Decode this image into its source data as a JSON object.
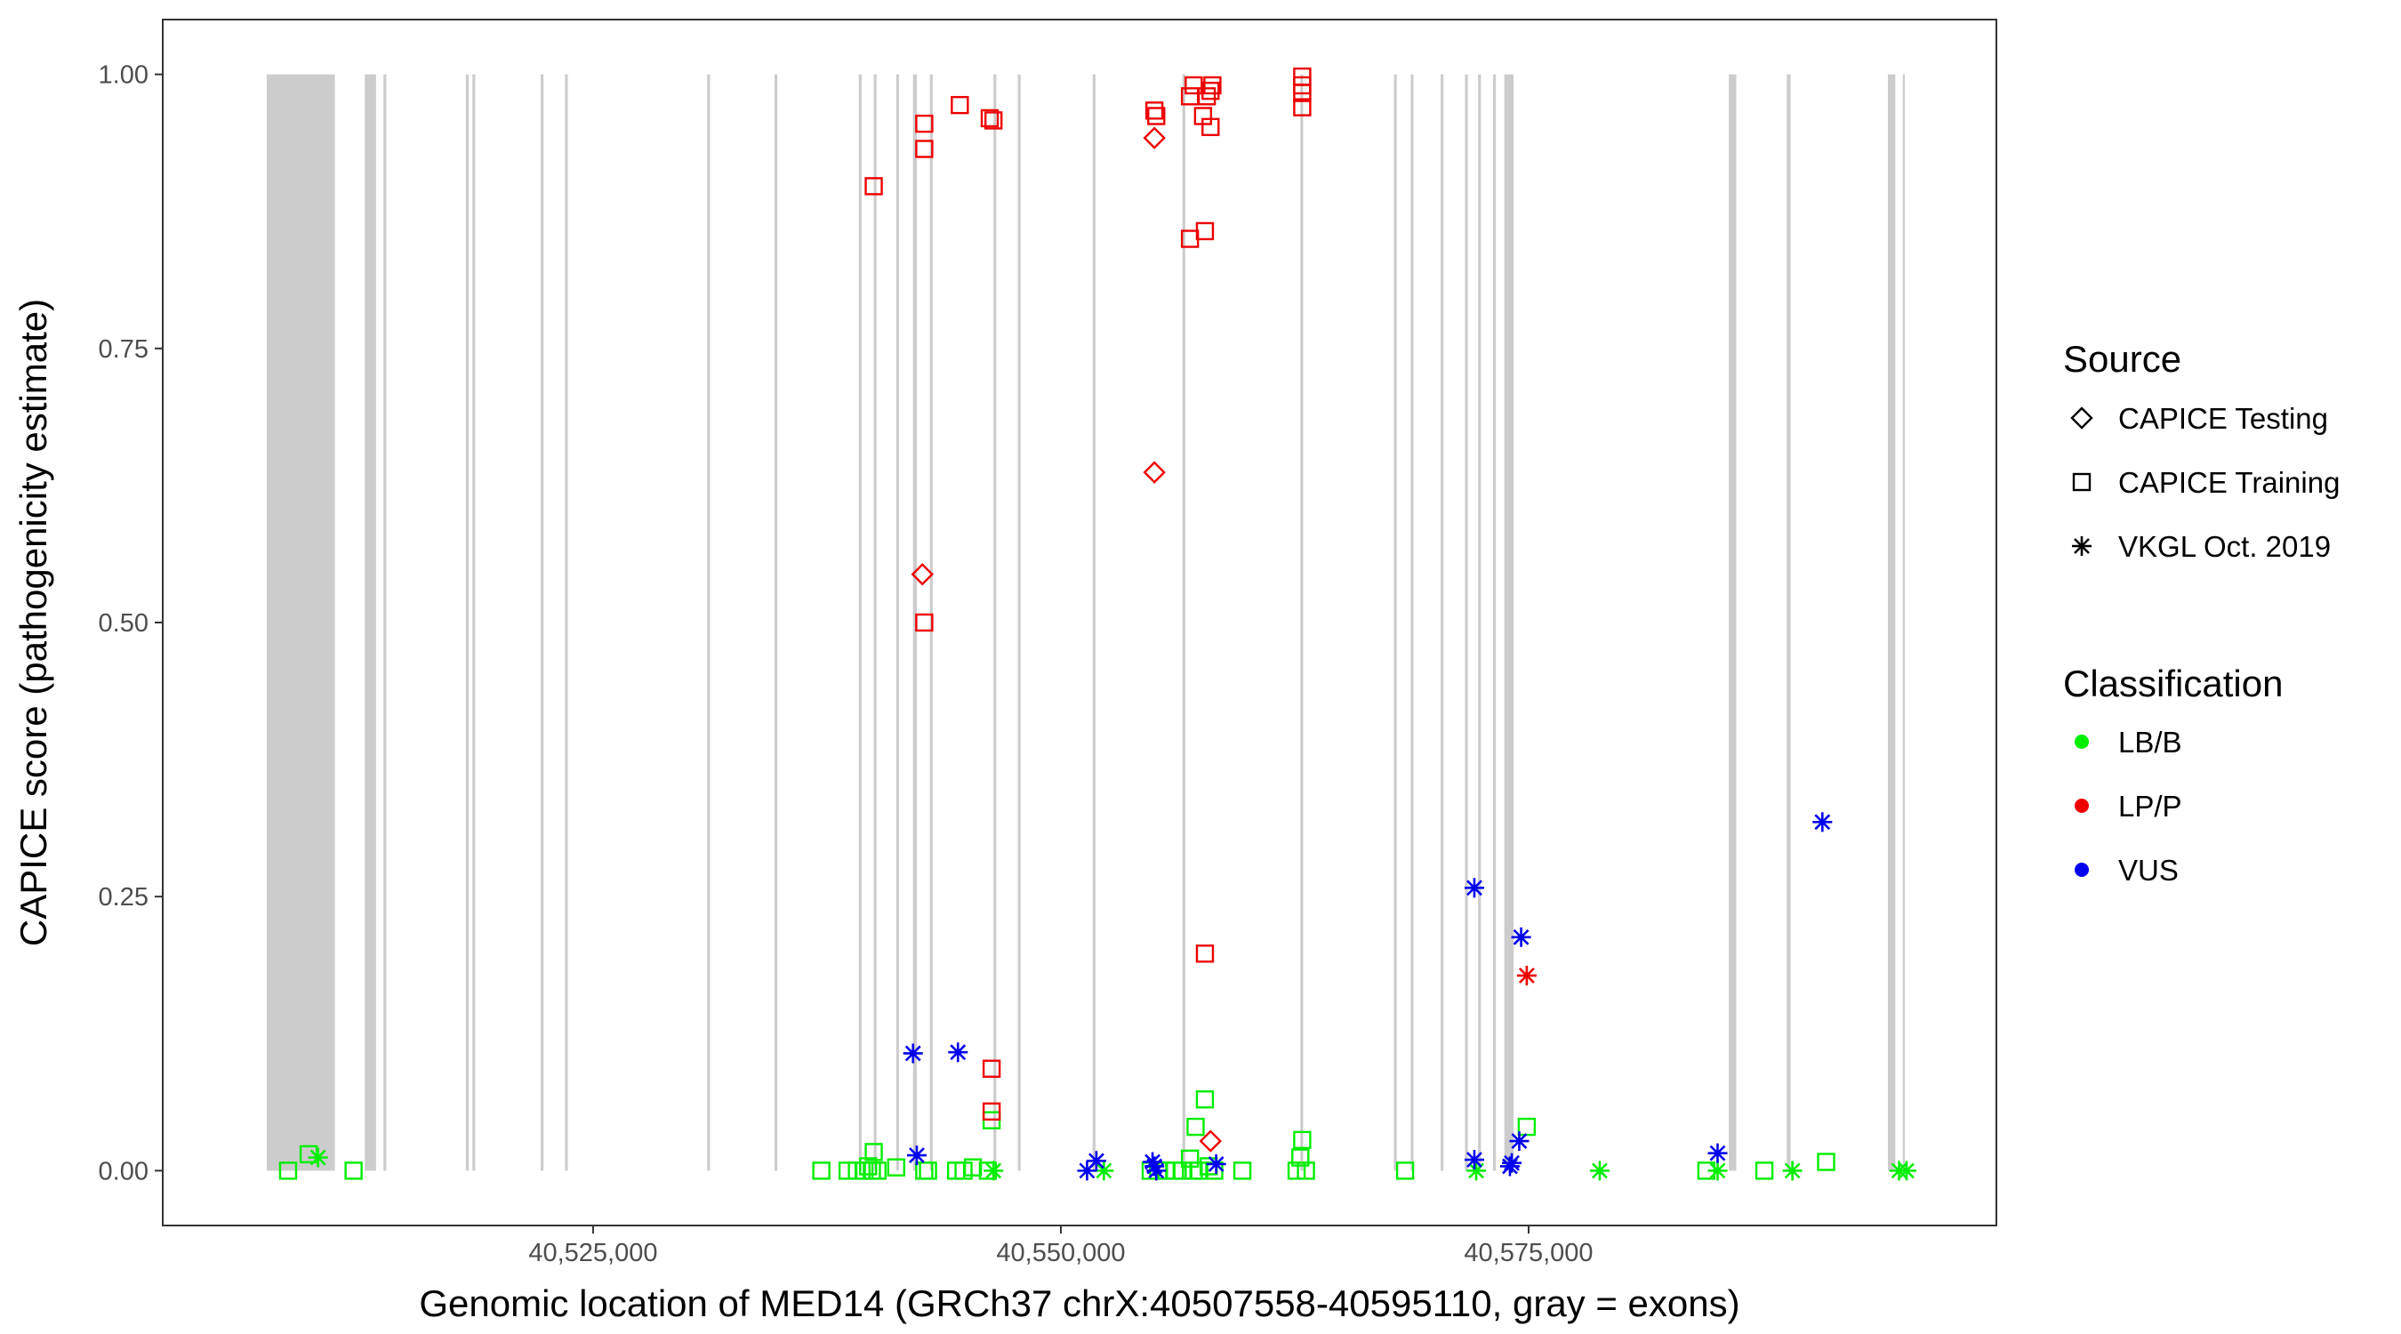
{
  "chart_data": {
    "type": "scatter",
    "title": "",
    "xlabel": "Genomic location of MED14 (GRCh37 chrX:40507558-40595110, gray = exons)",
    "ylabel": "CAPICE score (pathogenicity estimate)",
    "xlim": [
      40502000,
      40600000
    ],
    "ylim": [
      -0.05,
      1.05
    ],
    "x_ticks": [
      40525000,
      40550000,
      40575000
    ],
    "x_tick_labels": [
      "40,525,000",
      "40,550,000",
      "40,575,000"
    ],
    "y_ticks": [
      0,
      0.25,
      0.5,
      0.75,
      1
    ],
    "y_tick_labels": [
      "0.00",
      "0.25",
      "0.50",
      "0.75",
      "1.00"
    ],
    "grid": false,
    "legend_position": "right",
    "exon_color": "#cccccc",
    "exons": [
      [
        40507558,
        40511200
      ],
      [
        40512800,
        40513400
      ],
      [
        40513800,
        40513950
      ],
      [
        40518200,
        40518350
      ],
      [
        40518550,
        40518700
      ],
      [
        40522200,
        40522350
      ],
      [
        40523500,
        40523650
      ],
      [
        40531100,
        40531250
      ],
      [
        40534700,
        40534850
      ],
      [
        40539200,
        40539350
      ],
      [
        40540000,
        40540150
      ],
      [
        40541200,
        40541350
      ],
      [
        40542100,
        40542300
      ],
      [
        40543000,
        40543150
      ],
      [
        40546400,
        40546550
      ],
      [
        40547700,
        40547850
      ],
      [
        40551700,
        40551850
      ],
      [
        40556500,
        40556650
      ],
      [
        40562800,
        40562950
      ],
      [
        40567800,
        40567950
      ],
      [
        40568700,
        40568850
      ],
      [
        40570300,
        40570450
      ],
      [
        40571600,
        40571750
      ],
      [
        40572300,
        40572450
      ],
      [
        40573100,
        40573250
      ],
      [
        40573700,
        40574200
      ],
      [
        40585700,
        40586100
      ],
      [
        40588800,
        40589000
      ],
      [
        40594200,
        40594600
      ],
      [
        40595000,
        40595110
      ]
    ],
    "legend": {
      "source_title": "Source",
      "source_entries": [
        {
          "label": "CAPICE Testing",
          "shape": "diamond"
        },
        {
          "label": "CAPICE Training",
          "shape": "square"
        },
        {
          "label": "VKGL Oct. 2019",
          "shape": "asterisk"
        }
      ],
      "class_title": "Classification",
      "class_entries": [
        {
          "label": "LB/B",
          "color": "#00ee00"
        },
        {
          "label": "LP/P",
          "color": "#ee0000"
        },
        {
          "label": "VUS",
          "color": "#0000ee"
        }
      ]
    },
    "colors": {
      "LB/B": "#00ee00",
      "LP/P": "#ee0000",
      "VUS": "#0000ee"
    },
    "points": [
      {
        "x": 40509800,
        "y": 0.015,
        "cls": "LB/B",
        "shape": "square"
      },
      {
        "x": 40508700,
        "y": 0.0,
        "cls": "LB/B",
        "shape": "square"
      },
      {
        "x": 40510300,
        "y": 0.012,
        "cls": "LB/B",
        "shape": "asterisk"
      },
      {
        "x": 40512200,
        "y": 0.0,
        "cls": "LB/B",
        "shape": "square"
      },
      {
        "x": 40537200,
        "y": 0.0,
        "cls": "LB/B",
        "shape": "square"
      },
      {
        "x": 40538600,
        "y": 0.0,
        "cls": "LB/B",
        "shape": "square"
      },
      {
        "x": 40539100,
        "y": 0.0,
        "cls": "LB/B",
        "shape": "square"
      },
      {
        "x": 40539500,
        "y": 0.0,
        "cls": "LB/B",
        "shape": "square"
      },
      {
        "x": 40539700,
        "y": 0.004,
        "cls": "LB/B",
        "shape": "square"
      },
      {
        "x": 40539900,
        "y": 0.0,
        "cls": "LB/B",
        "shape": "square"
      },
      {
        "x": 40540000,
        "y": 0.017,
        "cls": "LB/B",
        "shape": "square"
      },
      {
        "x": 40540200,
        "y": 0.0,
        "cls": "LB/B",
        "shape": "square"
      },
      {
        "x": 40541200,
        "y": 0.003,
        "cls": "LB/B",
        "shape": "square"
      },
      {
        "x": 40542700,
        "y": 0.0,
        "cls": "LB/B",
        "shape": "square"
      },
      {
        "x": 40542900,
        "y": 0.0,
        "cls": "LB/B",
        "shape": "square"
      },
      {
        "x": 40544400,
        "y": 0.0,
        "cls": "LB/B",
        "shape": "square"
      },
      {
        "x": 40544800,
        "y": 0.0,
        "cls": "LB/B",
        "shape": "square"
      },
      {
        "x": 40545300,
        "y": 0.003,
        "cls": "LB/B",
        "shape": "square"
      },
      {
        "x": 40546100,
        "y": 0.0,
        "cls": "LB/B",
        "shape": "square"
      },
      {
        "x": 40546300,
        "y": 0.046,
        "cls": "LB/B",
        "shape": "square"
      },
      {
        "x": 40546400,
        "y": 0.0,
        "cls": "LB/B",
        "shape": "asterisk"
      },
      {
        "x": 40552300,
        "y": 0.0,
        "cls": "LB/B",
        "shape": "asterisk"
      },
      {
        "x": 40554800,
        "y": 0.0,
        "cls": "LB/B",
        "shape": "square"
      },
      {
        "x": 40555200,
        "y": 0.0,
        "cls": "LB/B",
        "shape": "square"
      },
      {
        "x": 40555600,
        "y": 0.0,
        "cls": "LB/B",
        "shape": "square"
      },
      {
        "x": 40556100,
        "y": 0.0,
        "cls": "LB/B",
        "shape": "square"
      },
      {
        "x": 40556500,
        "y": 0.0,
        "cls": "LB/B",
        "shape": "square"
      },
      {
        "x": 40556900,
        "y": 0.011,
        "cls": "LB/B",
        "shape": "square"
      },
      {
        "x": 40557100,
        "y": 0.0,
        "cls": "LB/B",
        "shape": "square"
      },
      {
        "x": 40557200,
        "y": 0.04,
        "cls": "LB/B",
        "shape": "square"
      },
      {
        "x": 40557400,
        "y": 0.0,
        "cls": "LB/B",
        "shape": "square"
      },
      {
        "x": 40557700,
        "y": 0.065,
        "cls": "LB/B",
        "shape": "square"
      },
      {
        "x": 40557900,
        "y": 0.004,
        "cls": "LB/B",
        "shape": "square"
      },
      {
        "x": 40558200,
        "y": 0.0,
        "cls": "LB/B",
        "shape": "square"
      },
      {
        "x": 40559700,
        "y": 0.0,
        "cls": "LB/B",
        "shape": "square"
      },
      {
        "x": 40562600,
        "y": 0.0,
        "cls": "LB/B",
        "shape": "square"
      },
      {
        "x": 40562800,
        "y": 0.012,
        "cls": "LB/B",
        "shape": "square"
      },
      {
        "x": 40562900,
        "y": 0.028,
        "cls": "LB/B",
        "shape": "square"
      },
      {
        "x": 40563100,
        "y": 0.0,
        "cls": "LB/B",
        "shape": "square"
      },
      {
        "x": 40568400,
        "y": 0.0,
        "cls": "LB/B",
        "shape": "square"
      },
      {
        "x": 40572200,
        "y": 0.0,
        "cls": "LB/B",
        "shape": "asterisk"
      },
      {
        "x": 40574900,
        "y": 0.04,
        "cls": "LB/B",
        "shape": "square"
      },
      {
        "x": 40578800,
        "y": 0.0,
        "cls": "LB/B",
        "shape": "asterisk"
      },
      {
        "x": 40584500,
        "y": 0.0,
        "cls": "LB/B",
        "shape": "square"
      },
      {
        "x": 40585100,
        "y": 0.0,
        "cls": "LB/B",
        "shape": "asterisk"
      },
      {
        "x": 40587600,
        "y": 0.0,
        "cls": "LB/B",
        "shape": "square"
      },
      {
        "x": 40589100,
        "y": 0.0,
        "cls": "LB/B",
        "shape": "asterisk"
      },
      {
        "x": 40590900,
        "y": 0.008,
        "cls": "LB/B",
        "shape": "square"
      },
      {
        "x": 40594800,
        "y": 0.0,
        "cls": "LB/B",
        "shape": "asterisk"
      },
      {
        "x": 40595200,
        "y": 0.0,
        "cls": "LB/B",
        "shape": "asterisk"
      },
      {
        "x": 40540000,
        "y": 0.898,
        "cls": "LP/P",
        "shape": "square"
      },
      {
        "x": 40542700,
        "y": 0.955,
        "cls": "LP/P",
        "shape": "square"
      },
      {
        "x": 40542700,
        "y": 0.932,
        "cls": "LP/P",
        "shape": "square"
      },
      {
        "x": 40542700,
        "y": 0.5,
        "cls": "LP/P",
        "shape": "square"
      },
      {
        "x": 40542600,
        "y": 0.544,
        "cls": "LP/P",
        "shape": "diamond"
      },
      {
        "x": 40544600,
        "y": 0.972,
        "cls": "LP/P",
        "shape": "square"
      },
      {
        "x": 40546200,
        "y": 0.96,
        "cls": "LP/P",
        "shape": "square"
      },
      {
        "x": 40546400,
        "y": 0.958,
        "cls": "LP/P",
        "shape": "square"
      },
      {
        "x": 40546300,
        "y": 0.093,
        "cls": "LP/P",
        "shape": "square"
      },
      {
        "x": 40546300,
        "y": 0.054,
        "cls": "LP/P",
        "shape": "square"
      },
      {
        "x": 40555000,
        "y": 0.967,
        "cls": "LP/P",
        "shape": "square"
      },
      {
        "x": 40555100,
        "y": 0.962,
        "cls": "LP/P",
        "shape": "square"
      },
      {
        "x": 40555000,
        "y": 0.942,
        "cls": "LP/P",
        "shape": "diamond"
      },
      {
        "x": 40555000,
        "y": 0.637,
        "cls": "LP/P",
        "shape": "diamond"
      },
      {
        "x": 40556900,
        "y": 0.98,
        "cls": "LP/P",
        "shape": "square"
      },
      {
        "x": 40557100,
        "y": 0.99,
        "cls": "LP/P",
        "shape": "square"
      },
      {
        "x": 40557600,
        "y": 0.962,
        "cls": "LP/P",
        "shape": "square"
      },
      {
        "x": 40557800,
        "y": 0.98,
        "cls": "LP/P",
        "shape": "square"
      },
      {
        "x": 40558000,
        "y": 0.985,
        "cls": "LP/P",
        "shape": "square"
      },
      {
        "x": 40558100,
        "y": 0.99,
        "cls": "LP/P",
        "shape": "square"
      },
      {
        "x": 40558000,
        "y": 0.952,
        "cls": "LP/P",
        "shape": "square"
      },
      {
        "x": 40557700,
        "y": 0.857,
        "cls": "LP/P",
        "shape": "square"
      },
      {
        "x": 40556900,
        "y": 0.85,
        "cls": "LP/P",
        "shape": "square"
      },
      {
        "x": 40557700,
        "y": 0.198,
        "cls": "LP/P",
        "shape": "square"
      },
      {
        "x": 40558000,
        "y": 0.027,
        "cls": "LP/P",
        "shape": "diamond"
      },
      {
        "x": 40562900,
        "y": 0.998,
        "cls": "LP/P",
        "shape": "square"
      },
      {
        "x": 40562900,
        "y": 0.99,
        "cls": "LP/P",
        "shape": "square"
      },
      {
        "x": 40562900,
        "y": 0.983,
        "cls": "LP/P",
        "shape": "square"
      },
      {
        "x": 40562900,
        "y": 0.97,
        "cls": "LP/P",
        "shape": "square"
      },
      {
        "x": 40574900,
        "y": 0.178,
        "cls": "LP/P",
        "shape": "asterisk"
      },
      {
        "x": 40542100,
        "y": 0.107,
        "cls": "VUS",
        "shape": "asterisk"
      },
      {
        "x": 40544500,
        "y": 0.108,
        "cls": "VUS",
        "shape": "asterisk"
      },
      {
        "x": 40542300,
        "y": 0.014,
        "cls": "VUS",
        "shape": "asterisk"
      },
      {
        "x": 40551400,
        "y": 0.0,
        "cls": "VUS",
        "shape": "asterisk"
      },
      {
        "x": 40551900,
        "y": 0.009,
        "cls": "VUS",
        "shape": "asterisk"
      },
      {
        "x": 40554900,
        "y": 0.008,
        "cls": "VUS",
        "shape": "asterisk"
      },
      {
        "x": 40555100,
        "y": 0.0,
        "cls": "VUS",
        "shape": "asterisk"
      },
      {
        "x": 40555000,
        "y": 0.004,
        "cls": "VUS",
        "shape": "asterisk"
      },
      {
        "x": 40558300,
        "y": 0.006,
        "cls": "VUS",
        "shape": "asterisk"
      },
      {
        "x": 40572100,
        "y": 0.258,
        "cls": "VUS",
        "shape": "asterisk"
      },
      {
        "x": 40572100,
        "y": 0.01,
        "cls": "VUS",
        "shape": "asterisk"
      },
      {
        "x": 40574600,
        "y": 0.213,
        "cls": "VUS",
        "shape": "asterisk"
      },
      {
        "x": 40574500,
        "y": 0.027,
        "cls": "VUS",
        "shape": "asterisk"
      },
      {
        "x": 40574100,
        "y": 0.007,
        "cls": "VUS",
        "shape": "asterisk"
      },
      {
        "x": 40574000,
        "y": 0.004,
        "cls": "VUS",
        "shape": "asterisk"
      },
      {
        "x": 40585100,
        "y": 0.016,
        "cls": "VUS",
        "shape": "asterisk"
      },
      {
        "x": 40590700,
        "y": 0.318,
        "cls": "VUS",
        "shape": "asterisk"
      }
    ]
  }
}
